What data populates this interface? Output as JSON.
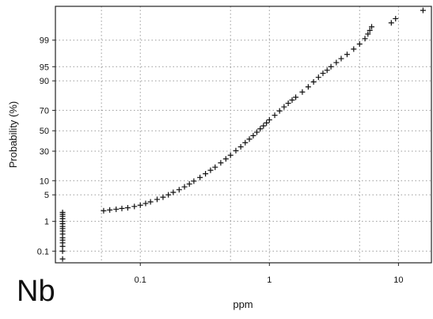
{
  "chart_data": {
    "type": "scatter",
    "subtype": "log-probability plot",
    "title": "",
    "element_label": "Nb",
    "xlabel": "ppm",
    "ylabel": "Probability (%)",
    "x_scale": "log10",
    "y_scale": "normal-probability",
    "xlim": [
      0.022,
      18
    ],
    "ylim_percent": [
      0.035,
      99.93
    ],
    "x_ticks": [
      {
        "value": 0.1,
        "label": "0.1"
      },
      {
        "value": 1,
        "label": "1"
      },
      {
        "value": 10,
        "label": "10"
      }
    ],
    "y_ticks": [
      {
        "value": 0.1,
        "label": "0.1"
      },
      {
        "value": 1,
        "label": "1"
      },
      {
        "value": 5,
        "label": "5"
      },
      {
        "value": 10,
        "label": "10"
      },
      {
        "value": 30,
        "label": "30"
      },
      {
        "value": 50,
        "label": "50"
      },
      {
        "value": 70,
        "label": "70"
      },
      {
        "value": 90,
        "label": "90"
      },
      {
        "value": 95,
        "label": "95"
      },
      {
        "value": 99,
        "label": "99"
      }
    ],
    "x_grid_extra": [
      0.05,
      0.5,
      5
    ],
    "grid": true,
    "marker": "plus",
    "marker_color": "#111111",
    "series": [
      {
        "points": [
          {
            "x": 0.025,
            "p": 0.05
          },
          {
            "x": 0.025,
            "p": 0.1
          },
          {
            "x": 0.025,
            "p": 0.15
          },
          {
            "x": 0.025,
            "p": 0.2
          },
          {
            "x": 0.025,
            "p": 0.25
          },
          {
            "x": 0.025,
            "p": 0.3
          },
          {
            "x": 0.025,
            "p": 0.4
          },
          {
            "x": 0.025,
            "p": 0.5
          },
          {
            "x": 0.025,
            "p": 0.6
          },
          {
            "x": 0.025,
            "p": 0.7
          },
          {
            "x": 0.025,
            "p": 0.85
          },
          {
            "x": 0.025,
            "p": 1.0
          },
          {
            "x": 0.025,
            "p": 1.2
          },
          {
            "x": 0.025,
            "p": 1.4
          },
          {
            "x": 0.025,
            "p": 1.6
          },
          {
            "x": 0.025,
            "p": 1.8
          },
          {
            "x": 0.052,
            "p": 2.0
          },
          {
            "x": 0.058,
            "p": 2.1
          },
          {
            "x": 0.065,
            "p": 2.2
          },
          {
            "x": 0.072,
            "p": 2.3
          },
          {
            "x": 0.08,
            "p": 2.4
          },
          {
            "x": 0.09,
            "p": 2.6
          },
          {
            "x": 0.1,
            "p": 2.8
          },
          {
            "x": 0.11,
            "p": 3.1
          },
          {
            "x": 0.12,
            "p": 3.4
          },
          {
            "x": 0.135,
            "p": 3.9
          },
          {
            "x": 0.15,
            "p": 4.4
          },
          {
            "x": 0.165,
            "p": 5.0
          },
          {
            "x": 0.18,
            "p": 5.7
          },
          {
            "x": 0.2,
            "p": 6.5
          },
          {
            "x": 0.22,
            "p": 7.5
          },
          {
            "x": 0.24,
            "p": 8.6
          },
          {
            "x": 0.26,
            "p": 9.8
          },
          {
            "x": 0.29,
            "p": 11.5
          },
          {
            "x": 0.32,
            "p": 13.5
          },
          {
            "x": 0.35,
            "p": 15.5
          },
          {
            "x": 0.38,
            "p": 17.5
          },
          {
            "x": 0.42,
            "p": 20.5
          },
          {
            "x": 0.46,
            "p": 23.5
          },
          {
            "x": 0.5,
            "p": 26.5
          },
          {
            "x": 0.55,
            "p": 30.5
          },
          {
            "x": 0.6,
            "p": 34.0
          },
          {
            "x": 0.65,
            "p": 38.0
          },
          {
            "x": 0.7,
            "p": 41.5
          },
          {
            "x": 0.75,
            "p": 45.0
          },
          {
            "x": 0.8,
            "p": 48.5
          },
          {
            "x": 0.85,
            "p": 52.0
          },
          {
            "x": 0.9,
            "p": 55.0
          },
          {
            "x": 0.95,
            "p": 58.0
          },
          {
            "x": 1.0,
            "p": 61.0
          },
          {
            "x": 1.1,
            "p": 65.5
          },
          {
            "x": 1.2,
            "p": 69.5
          },
          {
            "x": 1.3,
            "p": 73.0
          },
          {
            "x": 1.4,
            "p": 76.0
          },
          {
            "x": 1.5,
            "p": 78.5
          },
          {
            "x": 1.6,
            "p": 80.5
          },
          {
            "x": 1.8,
            "p": 84.0
          },
          {
            "x": 2.0,
            "p": 87.0
          },
          {
            "x": 2.2,
            "p": 89.5
          },
          {
            "x": 2.4,
            "p": 91.5
          },
          {
            "x": 2.6,
            "p": 93.0
          },
          {
            "x": 2.8,
            "p": 94.0
          },
          {
            "x": 3.0,
            "p": 95.0
          },
          {
            "x": 3.3,
            "p": 96.0
          },
          {
            "x": 3.6,
            "p": 96.8
          },
          {
            "x": 4.0,
            "p": 97.5
          },
          {
            "x": 4.5,
            "p": 98.2
          },
          {
            "x": 5.0,
            "p": 98.7
          },
          {
            "x": 5.5,
            "p": 99.1
          },
          {
            "x": 5.8,
            "p": 99.35
          },
          {
            "x": 6.0,
            "p": 99.5
          },
          {
            "x": 6.2,
            "p": 99.62
          },
          {
            "x": 8.8,
            "p": 99.72
          },
          {
            "x": 9.5,
            "p": 99.8
          },
          {
            "x": 15.5,
            "p": 99.9
          }
        ]
      }
    ]
  }
}
